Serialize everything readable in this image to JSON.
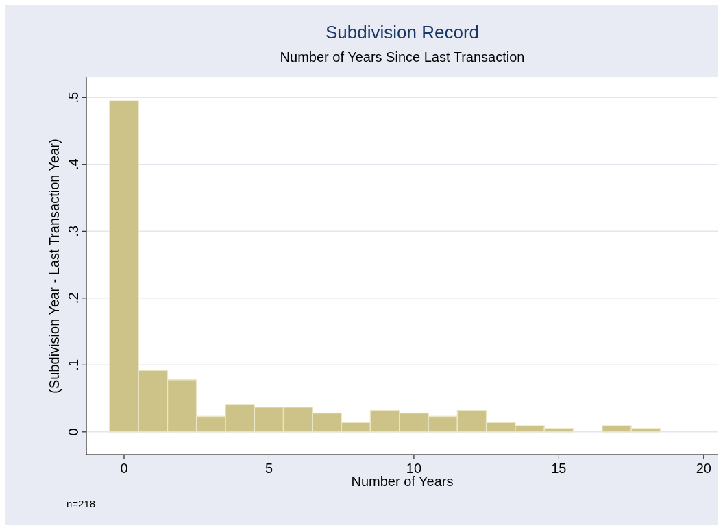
{
  "chart_data": {
    "type": "histogram",
    "title": "Subdivision Record",
    "subtitle": "Number of Years Since Last Transaction",
    "xlabel": "Number of Years",
    "ylabel": "(Subdivision Year - Last Transaction Year)",
    "bins": [
      -0.5,
      0.5,
      1.5,
      2.5,
      3.5,
      4.5,
      5.5,
      6.5,
      7.5,
      8.5,
      9.5,
      10.5,
      11.5,
      12.5,
      13.5,
      14.5,
      15.5,
      16.5,
      17.5,
      18.5
    ],
    "values": [
      0.495,
      0.092,
      0.078,
      0.023,
      0.041,
      0.037,
      0.037,
      0.028,
      0.014,
      0.032,
      0.028,
      0.023,
      0.032,
      0.014,
      0.009,
      0.005,
      0,
      0.009,
      0.005
    ],
    "color": "#cdc388",
    "xlim": [
      -1.3,
      20.5
    ],
    "xticks": [
      0,
      5,
      10,
      15,
      20
    ],
    "ylim": [
      -0.034,
      0.53
    ],
    "yticks": [
      0,
      {
        "value": 0.1,
        "label": ".1"
      },
      {
        "value": 0.2,
        "label": ".2"
      },
      {
        "value": 0.3,
        "label": ".3"
      },
      {
        "value": 0.4,
        "label": ".4"
      },
      {
        "value": 0.5,
        "label": ".5"
      }
    ],
    "grid": "y",
    "annotations": [
      "n=218"
    ]
  }
}
